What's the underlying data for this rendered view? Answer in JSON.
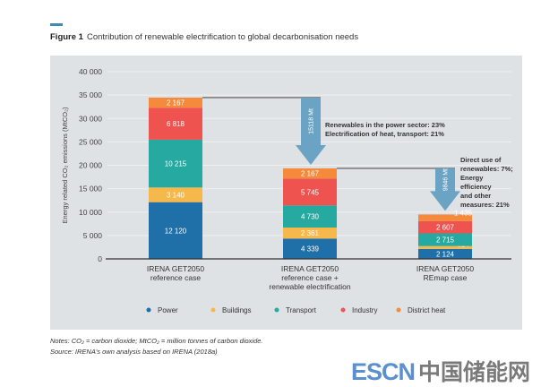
{
  "figure": {
    "label": "Figure 1",
    "title": "Contribution of renewable electrification to global decarbonisation needs"
  },
  "notes": {
    "line1": "Notes: CO₂ = carbon dioxide; MtCO₂ = million tonnes of carbon dioxide.",
    "line2": "Source: IRENA's own analysis based on IRENA (2018a)"
  },
  "watermark": {
    "latin": "ESCN",
    "chinese": "中国储能网"
  },
  "chart_data": {
    "type": "bar",
    "stacked": true,
    "title": "Contribution of renewable electrification to global decarbonisation needs",
    "ylabel": "Energy related CO₂ emissions (MtCO₂)",
    "xlabel": "",
    "ylim": [
      0,
      40000
    ],
    "yticks": [
      0,
      5000,
      10000,
      15000,
      20000,
      25000,
      30000,
      35000,
      40000
    ],
    "ytick_labels": [
      "0",
      "5 000",
      "10 000",
      "15 000",
      "20 000",
      "25 000",
      "30 000",
      "35 000",
      "40 000"
    ],
    "grid": true,
    "legend_position": "bottom",
    "categories": [
      [
        "IRENA GET2050",
        "reference case"
      ],
      [
        "IRENA GET2050",
        "reference case +",
        "renewable electrification"
      ],
      [
        "IRENA GET2050",
        "REmap case"
      ]
    ],
    "series": [
      {
        "name": "Power",
        "color": "#1f6fa8",
        "values": [
          12120,
          4339,
          2124
        ],
        "labels": [
          "12 120",
          "4 339",
          "2 124"
        ]
      },
      {
        "name": "Buildings",
        "color": "#f6b84a",
        "values": [
          3140,
          2361,
          614
        ],
        "labels": [
          "3 140",
          "2 361",
          "614"
        ]
      },
      {
        "name": "Transport",
        "color": "#26a9a0",
        "values": [
          10215,
          4730,
          2715
        ],
        "labels": [
          "10 215",
          "4 730",
          "2 715"
        ]
      },
      {
        "name": "Industry",
        "color": "#ef5350",
        "values": [
          6818,
          5745,
          2607
        ],
        "labels": [
          "6 818",
          "5 745",
          "2 607"
        ]
      },
      {
        "name": "District heat",
        "color": "#f58a3c",
        "values": [
          2167,
          2167,
          1435
        ],
        "labels": [
          "2 167",
          "2 167",
          "1 435"
        ]
      }
    ],
    "annotations": [
      {
        "arrow_label": "15118 Mt",
        "from_bar": 0,
        "to_bar": 1,
        "text": [
          "Renewables in the power sector: 23%",
          "Electrification of heat, transport: 21%"
        ]
      },
      {
        "arrow_label": "9846 Mt",
        "from_bar": 1,
        "to_bar": 2,
        "text": [
          "Direct use of",
          "renewables: 7%;",
          "Energy",
          "efficiency",
          "and other",
          "measures: 21%"
        ]
      }
    ]
  }
}
